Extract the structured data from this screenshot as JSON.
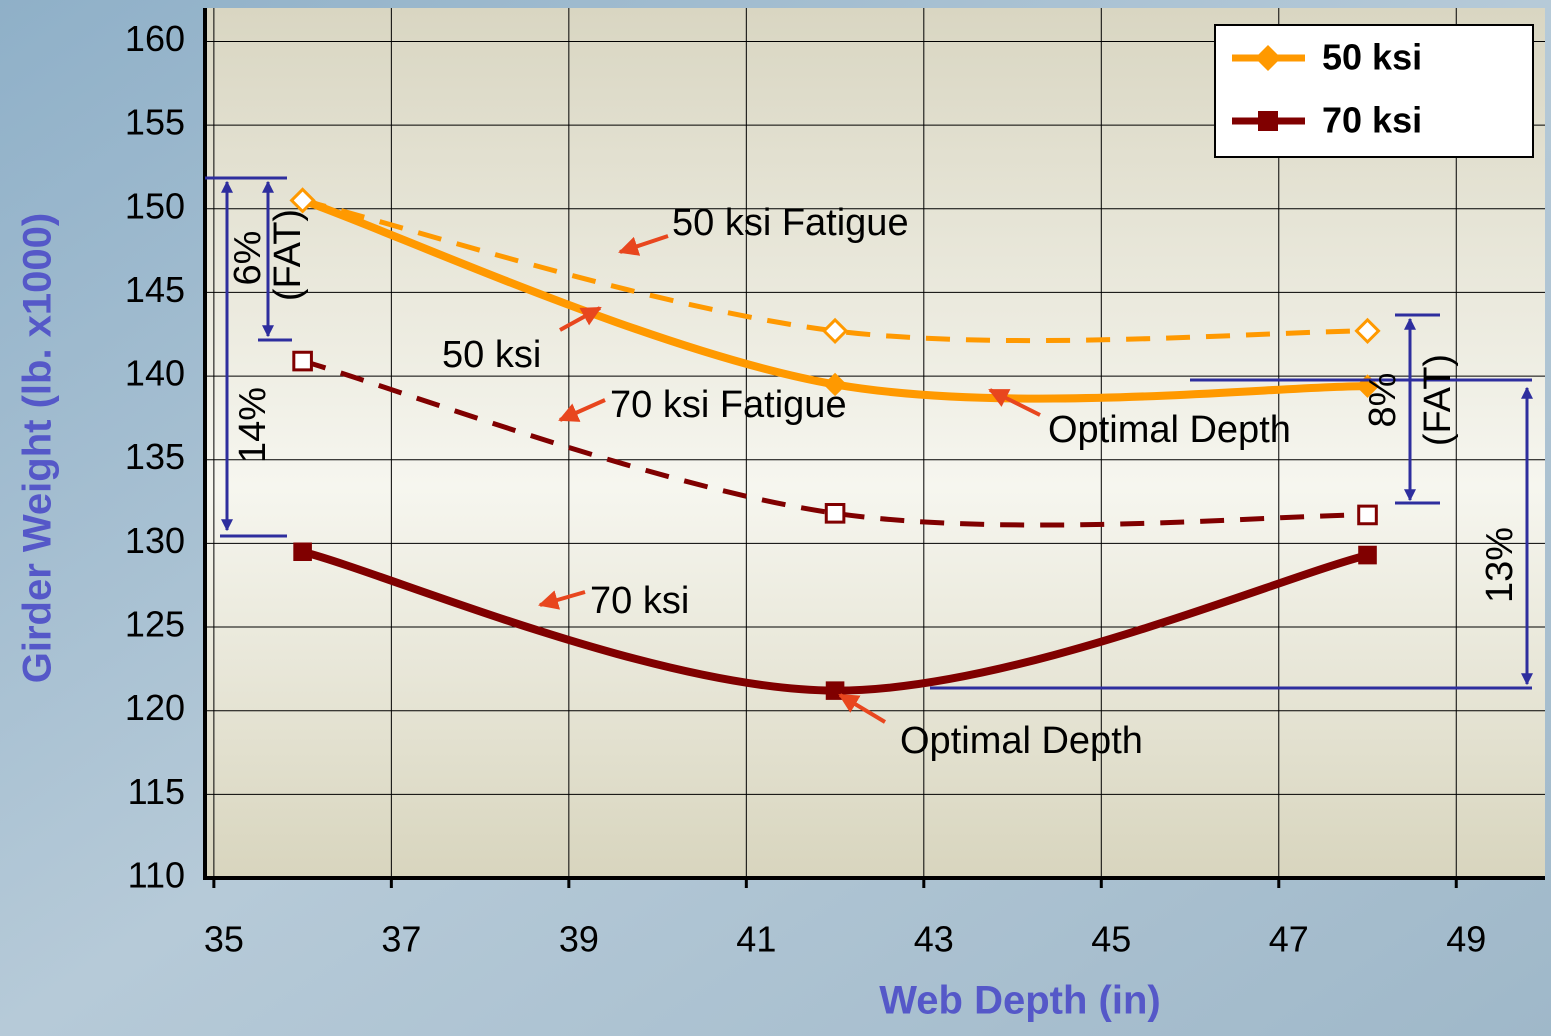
{
  "chart_data": {
    "type": "line",
    "x_label": "Web Depth (in)",
    "y_label": "Girder Weight (lb. x1000)",
    "xlim": [
      34.9,
      50
    ],
    "ylim": [
      110,
      162
    ],
    "xticks": [
      35,
      37,
      39,
      41,
      43,
      45,
      47,
      49
    ],
    "yticks": [
      110,
      115,
      120,
      125,
      130,
      135,
      140,
      145,
      150,
      155,
      160
    ],
    "grid": true,
    "legend": "upper right",
    "series": [
      {
        "name": "50 ksi",
        "color": "#ff9900",
        "style": "solid",
        "marker": "diamond",
        "filled": true,
        "in_legend": true,
        "x": [
          36,
          42,
          48
        ],
        "values": [
          150.5,
          139.5,
          139.4
        ]
      },
      {
        "name": "70 ksi",
        "color": "#800000",
        "style": "solid",
        "marker": "square",
        "filled": true,
        "in_legend": true,
        "x": [
          36,
          42,
          48
        ],
        "values": [
          129.5,
          121.2,
          129.3
        ]
      },
      {
        "name": "50 ksi Fatigue",
        "color": "#ff9900",
        "style": "dashed",
        "marker": "diamond",
        "filled": false,
        "in_legend": false,
        "x": [
          36,
          42,
          48
        ],
        "values": [
          150.5,
          142.7,
          142.7
        ]
      },
      {
        "name": "70 ksi Fatigue",
        "color": "#800000",
        "style": "dashed",
        "marker": "square",
        "filled": false,
        "in_legend": false,
        "x": [
          36,
          42,
          48
        ],
        "values": [
          140.9,
          131.8,
          131.7
        ]
      }
    ],
    "annotations": [
      "Optimal Depth",
      "Optimal Depth",
      "6%",
      "(FAT)",
      "14%",
      "8%",
      "(FAT)",
      "13%"
    ]
  }
}
